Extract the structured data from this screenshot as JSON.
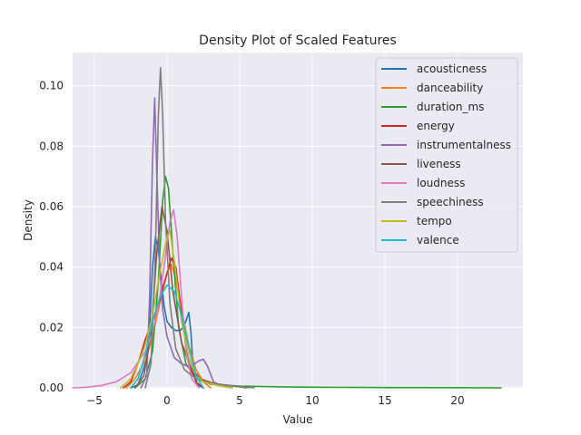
{
  "chart_data": {
    "type": "line",
    "title": "Density Plot of Scaled Features",
    "xlabel": "Value",
    "ylabel": "Density",
    "xlim": [
      -6.5,
      24.5
    ],
    "ylim": [
      0,
      0.111
    ],
    "xticks": [
      -5,
      0,
      5,
      10,
      15,
      20
    ],
    "yticks": [
      0.0,
      0.02,
      0.04,
      0.06,
      0.08,
      0.1
    ],
    "xtick_labels": [
      "−5",
      "0",
      "5",
      "10",
      "15",
      "20"
    ],
    "ytick_labels": [
      "0.00",
      "0.02",
      "0.04",
      "0.06",
      "0.08",
      "0.10"
    ],
    "grid": true,
    "legend_position": "top-right",
    "series": [
      {
        "name": "acousticness",
        "color": "#1f77b4",
        "points": [
          [
            -2.5,
            0
          ],
          [
            -2,
            0.001
          ],
          [
            -1.5,
            0.008
          ],
          [
            -1.2,
            0.02
          ],
          [
            -1.0,
            0.04
          ],
          [
            -0.8,
            0.05
          ],
          [
            -0.6,
            0.046
          ],
          [
            -0.4,
            0.036
          ],
          [
            -0.2,
            0.027
          ],
          [
            0,
            0.022
          ],
          [
            0.3,
            0.02
          ],
          [
            0.6,
            0.019
          ],
          [
            0.9,
            0.019
          ],
          [
            1.1,
            0.02
          ],
          [
            1.3,
            0.022
          ],
          [
            1.5,
            0.025
          ],
          [
            1.65,
            0.018
          ],
          [
            1.8,
            0.006
          ],
          [
            2.1,
            0.001
          ],
          [
            2.5,
            0
          ]
        ]
      },
      {
        "name": "danceability",
        "color": "#ff7f0e",
        "points": [
          [
            -2.8,
            0
          ],
          [
            -2.2,
            0.003
          ],
          [
            -1.5,
            0.009
          ],
          [
            -1,
            0.017
          ],
          [
            -0.5,
            0.028
          ],
          [
            0,
            0.038
          ],
          [
            0.3,
            0.041
          ],
          [
            0.6,
            0.036
          ],
          [
            1,
            0.026
          ],
          [
            1.5,
            0.014
          ],
          [
            2,
            0.006
          ],
          [
            2.5,
            0.002
          ],
          [
            3,
            0
          ]
        ]
      },
      {
        "name": "duration_ms",
        "color": "#2ca02c",
        "points": [
          [
            -2.2,
            0
          ],
          [
            -1.5,
            0.003
          ],
          [
            -1,
            0.012
          ],
          [
            -0.6,
            0.035
          ],
          [
            -0.3,
            0.062
          ],
          [
            -0.1,
            0.07
          ],
          [
            0.1,
            0.066
          ],
          [
            0.4,
            0.045
          ],
          [
            0.8,
            0.02
          ],
          [
            1.3,
            0.008
          ],
          [
            2,
            0.003
          ],
          [
            3,
            0.0012
          ],
          [
            5,
            0.0006
          ],
          [
            7,
            0.0004
          ],
          [
            10,
            0.0002
          ],
          [
            15,
            0.0001
          ],
          [
            20,
            5e-05
          ],
          [
            23,
            0
          ]
        ]
      },
      {
        "name": "energy",
        "color": "#d62728",
        "points": [
          [
            -3,
            0
          ],
          [
            -2.5,
            0.002
          ],
          [
            -2,
            0.008
          ],
          [
            -1.5,
            0.016
          ],
          [
            -1,
            0.022
          ],
          [
            -0.6,
            0.027
          ],
          [
            -0.3,
            0.033
          ],
          [
            0,
            0.038
          ],
          [
            0.3,
            0.043
          ],
          [
            0.6,
            0.04
          ],
          [
            1,
            0.025
          ],
          [
            1.5,
            0.008
          ],
          [
            2,
            0.002
          ],
          [
            2.5,
            0
          ]
        ]
      },
      {
        "name": "instrumentalness",
        "color": "#9467bd",
        "points": [
          [
            -1.8,
            0
          ],
          [
            -1.4,
            0.004
          ],
          [
            -1.2,
            0.03
          ],
          [
            -1.0,
            0.075
          ],
          [
            -0.85,
            0.096
          ],
          [
            -0.7,
            0.07
          ],
          [
            -0.5,
            0.04
          ],
          [
            -0.3,
            0.026
          ],
          [
            0,
            0.017
          ],
          [
            0.5,
            0.01
          ],
          [
            1,
            0.008
          ],
          [
            1.5,
            0.007
          ],
          [
            1.9,
            0.008
          ],
          [
            2.2,
            0.009
          ],
          [
            2.5,
            0.0095
          ],
          [
            2.8,
            0.007
          ],
          [
            3.2,
            0.002
          ],
          [
            3.8,
            0.0005
          ],
          [
            4.5,
            0
          ]
        ]
      },
      {
        "name": "liveness",
        "color": "#8c564b",
        "points": [
          [
            -2.2,
            0
          ],
          [
            -1.6,
            0.004
          ],
          [
            -1.1,
            0.018
          ],
          [
            -0.7,
            0.045
          ],
          [
            -0.35,
            0.06
          ],
          [
            0,
            0.052
          ],
          [
            0.4,
            0.032
          ],
          [
            1,
            0.015
          ],
          [
            1.6,
            0.007
          ],
          [
            2.3,
            0.003
          ],
          [
            3.2,
            0.0015
          ],
          [
            4.5,
            0.0006
          ],
          [
            5.5,
            0
          ]
        ]
      },
      {
        "name": "loudness",
        "color": "#e377c2",
        "points": [
          [
            -6.5,
            0
          ],
          [
            -5.5,
            0.0002
          ],
          [
            -4.5,
            0.0008
          ],
          [
            -3.5,
            0.002
          ],
          [
            -2.5,
            0.005
          ],
          [
            -1.5,
            0.012
          ],
          [
            -1,
            0.018
          ],
          [
            -0.5,
            0.03
          ],
          [
            -0.1,
            0.044
          ],
          [
            0.2,
            0.055
          ],
          [
            0.45,
            0.059
          ],
          [
            0.7,
            0.05
          ],
          [
            1,
            0.03
          ],
          [
            1.3,
            0.012
          ],
          [
            1.7,
            0.003
          ],
          [
            2.2,
            0
          ]
        ]
      },
      {
        "name": "speechiness",
        "color": "#7f7f7f",
        "points": [
          [
            -1.5,
            0
          ],
          [
            -1.1,
            0.008
          ],
          [
            -0.8,
            0.045
          ],
          [
            -0.6,
            0.09
          ],
          [
            -0.45,
            0.106
          ],
          [
            -0.3,
            0.09
          ],
          [
            -0.1,
            0.055
          ],
          [
            0.2,
            0.028
          ],
          [
            0.6,
            0.013
          ],
          [
            1.2,
            0.006
          ],
          [
            2,
            0.003
          ],
          [
            3,
            0.0015
          ],
          [
            4,
            0.0008
          ],
          [
            5,
            0.0004
          ],
          [
            6,
            0
          ]
        ]
      },
      {
        "name": "tempo",
        "color": "#bcbd22",
        "points": [
          [
            -3.2,
            0
          ],
          [
            -2.5,
            0.003
          ],
          [
            -2,
            0.008
          ],
          [
            -1.5,
            0.014
          ],
          [
            -1,
            0.024
          ],
          [
            -0.5,
            0.038
          ],
          [
            0,
            0.05
          ],
          [
            0.2,
            0.052
          ],
          [
            0.5,
            0.042
          ],
          [
            1,
            0.022
          ],
          [
            1.5,
            0.01
          ],
          [
            2,
            0.004
          ],
          [
            2.5,
            0.002
          ],
          [
            3.5,
            0.0008
          ],
          [
            4.5,
            0
          ]
        ]
      },
      {
        "name": "valence",
        "color": "#17becf",
        "points": [
          [
            -2.5,
            0
          ],
          [
            -2,
            0.003
          ],
          [
            -1.5,
            0.011
          ],
          [
            -1,
            0.022
          ],
          [
            -0.5,
            0.03
          ],
          [
            0,
            0.034
          ],
          [
            0.5,
            0.032
          ],
          [
            1,
            0.024
          ],
          [
            1.5,
            0.013
          ],
          [
            2,
            0.004
          ],
          [
            2.5,
            0
          ]
        ]
      }
    ]
  }
}
